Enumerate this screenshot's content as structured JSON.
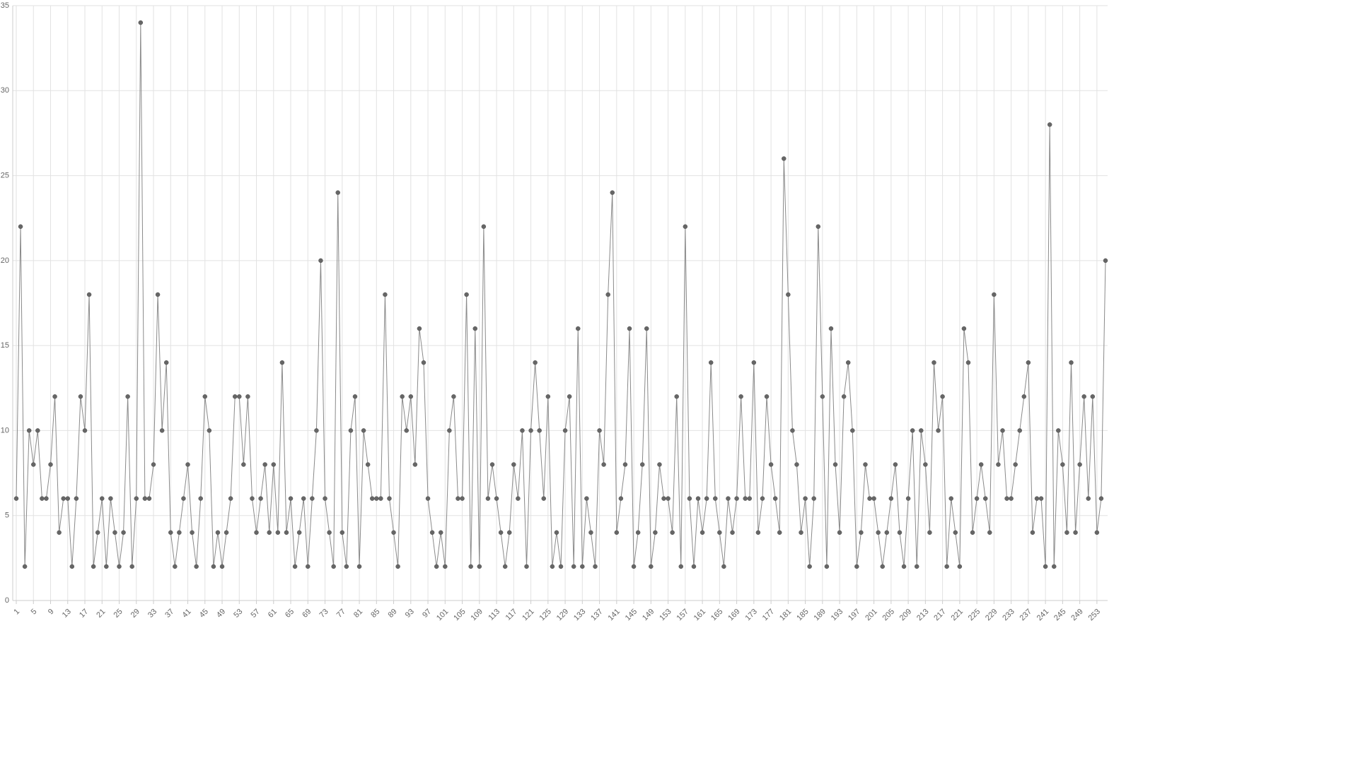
{
  "chart_data": {
    "type": "line",
    "color": "#666666",
    "line_color": "#8a8a8a",
    "grid": true,
    "x": [
      1,
      2,
      3,
      4,
      5,
      6,
      7,
      8,
      9,
      10,
      11,
      12,
      13,
      14,
      15,
      16,
      17,
      18,
      19,
      20,
      21,
      22,
      23,
      24,
      25,
      26,
      27,
      28,
      29,
      30,
      31,
      32,
      33,
      34,
      35,
      36,
      37,
      38,
      39,
      40,
      41,
      42,
      43,
      44,
      45,
      46,
      47,
      48,
      49,
      50,
      51,
      52,
      53,
      54,
      55,
      56,
      57,
      58,
      59,
      60,
      61,
      62,
      63,
      64,
      65,
      66,
      67,
      68,
      69,
      70,
      71,
      72,
      73,
      74,
      75,
      76,
      77,
      78,
      79,
      80,
      81,
      82,
      83,
      84,
      85,
      86,
      87,
      88,
      89,
      90,
      91,
      92,
      93,
      94,
      95,
      96,
      97,
      98,
      99,
      100,
      101,
      102,
      103,
      104,
      105,
      106,
      107,
      108,
      109,
      110,
      111,
      112,
      113,
      114,
      115,
      116,
      117,
      118,
      119,
      120,
      121,
      122,
      123,
      124,
      125,
      126,
      127,
      128,
      129,
      130,
      131,
      132,
      133,
      134,
      135,
      136,
      137,
      138,
      139,
      140,
      141,
      142,
      143,
      144,
      145,
      146,
      147,
      148,
      149,
      150,
      151,
      152,
      153,
      154,
      155,
      156,
      157,
      158,
      159,
      160,
      161,
      162,
      163,
      164,
      165,
      166,
      167,
      168,
      169,
      170,
      171,
      172,
      173,
      174,
      175,
      176,
      177,
      178,
      179,
      180,
      181,
      182,
      183,
      184,
      185,
      186,
      187,
      188,
      189,
      190,
      191,
      192,
      193,
      194,
      195,
      196,
      197,
      198,
      199,
      200,
      201,
      202,
      203,
      204,
      205,
      206,
      207,
      208,
      209,
      210,
      211,
      212,
      213,
      214,
      215,
      216,
      217,
      218,
      219,
      220,
      221,
      222,
      223,
      224,
      225,
      226,
      227,
      228,
      229,
      230,
      231,
      232,
      233,
      234,
      235,
      236,
      237,
      238,
      239,
      240,
      241,
      242,
      243,
      244,
      245,
      246,
      247,
      248,
      249,
      250,
      251,
      252,
      253,
      254,
      255
    ],
    "values": [
      6,
      22,
      2,
      10,
      8,
      10,
      6,
      6,
      8,
      12,
      4,
      6,
      6,
      2,
      6,
      12,
      10,
      18,
      2,
      4,
      6,
      2,
      6,
      4,
      2,
      4,
      12,
      2,
      6,
      34,
      6,
      6,
      8,
      18,
      10,
      14,
      4,
      2,
      4,
      6,
      8,
      4,
      2,
      6,
      12,
      10,
      2,
      4,
      2,
      4,
      6,
      12,
      12,
      8,
      12,
      6,
      4,
      6,
      8,
      4,
      8,
      4,
      14,
      4,
      6,
      2,
      4,
      6,
      2,
      6,
      10,
      20,
      6,
      4,
      2,
      24,
      4,
      2,
      10,
      12,
      2,
      10,
      8,
      6,
      6,
      6,
      18,
      6,
      4,
      2,
      12,
      10,
      12,
      8,
      16,
      14,
      6,
      4,
      2,
      4,
      2,
      10,
      12,
      6,
      6,
      18,
      2,
      16,
      2,
      22,
      6,
      8,
      6,
      4,
      2,
      4,
      8,
      6,
      10,
      2,
      10,
      14,
      10,
      6,
      12,
      2,
      4,
      2,
      10,
      12,
      2,
      16,
      2,
      6,
      4,
      2,
      10,
      8,
      18,
      24,
      4,
      6,
      8,
      16,
      2,
      4,
      8,
      16,
      2,
      4,
      8,
      6,
      6,
      4,
      12,
      2,
      22,
      6,
      2,
      6,
      4,
      6,
      14,
      6,
      4,
      2,
      6,
      4,
      6,
      12,
      6,
      6,
      14,
      4,
      6,
      12,
      8,
      6,
      4,
      26,
      18,
      10,
      8,
      4,
      6,
      2,
      6,
      22,
      12,
      2,
      16,
      8,
      4,
      12,
      14,
      10,
      2,
      4,
      8,
      6,
      6,
      4,
      2,
      4,
      6,
      8,
      4,
      2,
      6,
      10,
      2,
      10,
      8,
      4,
      14,
      10,
      12,
      2,
      6,
      4,
      2,
      16,
      14,
      4,
      6,
      8,
      6,
      4,
      18,
      8,
      10,
      6,
      6,
      8,
      10,
      12,
      14,
      4,
      6,
      6,
      2,
      28,
      2,
      10,
      8,
      4,
      14,
      4,
      8,
      12,
      6,
      12,
      4,
      6,
      20
    ],
    "xlim": [
      1,
      255
    ],
    "xticks": [
      1,
      5,
      9,
      13,
      17,
      21,
      25,
      29,
      33,
      37,
      41,
      45,
      49,
      53,
      57,
      61,
      65,
      69,
      73,
      77,
      81,
      85,
      89,
      93,
      97,
      101,
      105,
      109,
      113,
      117,
      121,
      125,
      129,
      133,
      137,
      141,
      145,
      149,
      153,
      157,
      161,
      165,
      169,
      173,
      177,
      181,
      185,
      189,
      193,
      197,
      201,
      205,
      209,
      213,
      217,
      221,
      225,
      229,
      233,
      237,
      241,
      245,
      249,
      253
    ],
    "ylim": [
      0,
      35
    ],
    "yticks": [
      0,
      5,
      10,
      15,
      20,
      25,
      30,
      35
    ]
  }
}
